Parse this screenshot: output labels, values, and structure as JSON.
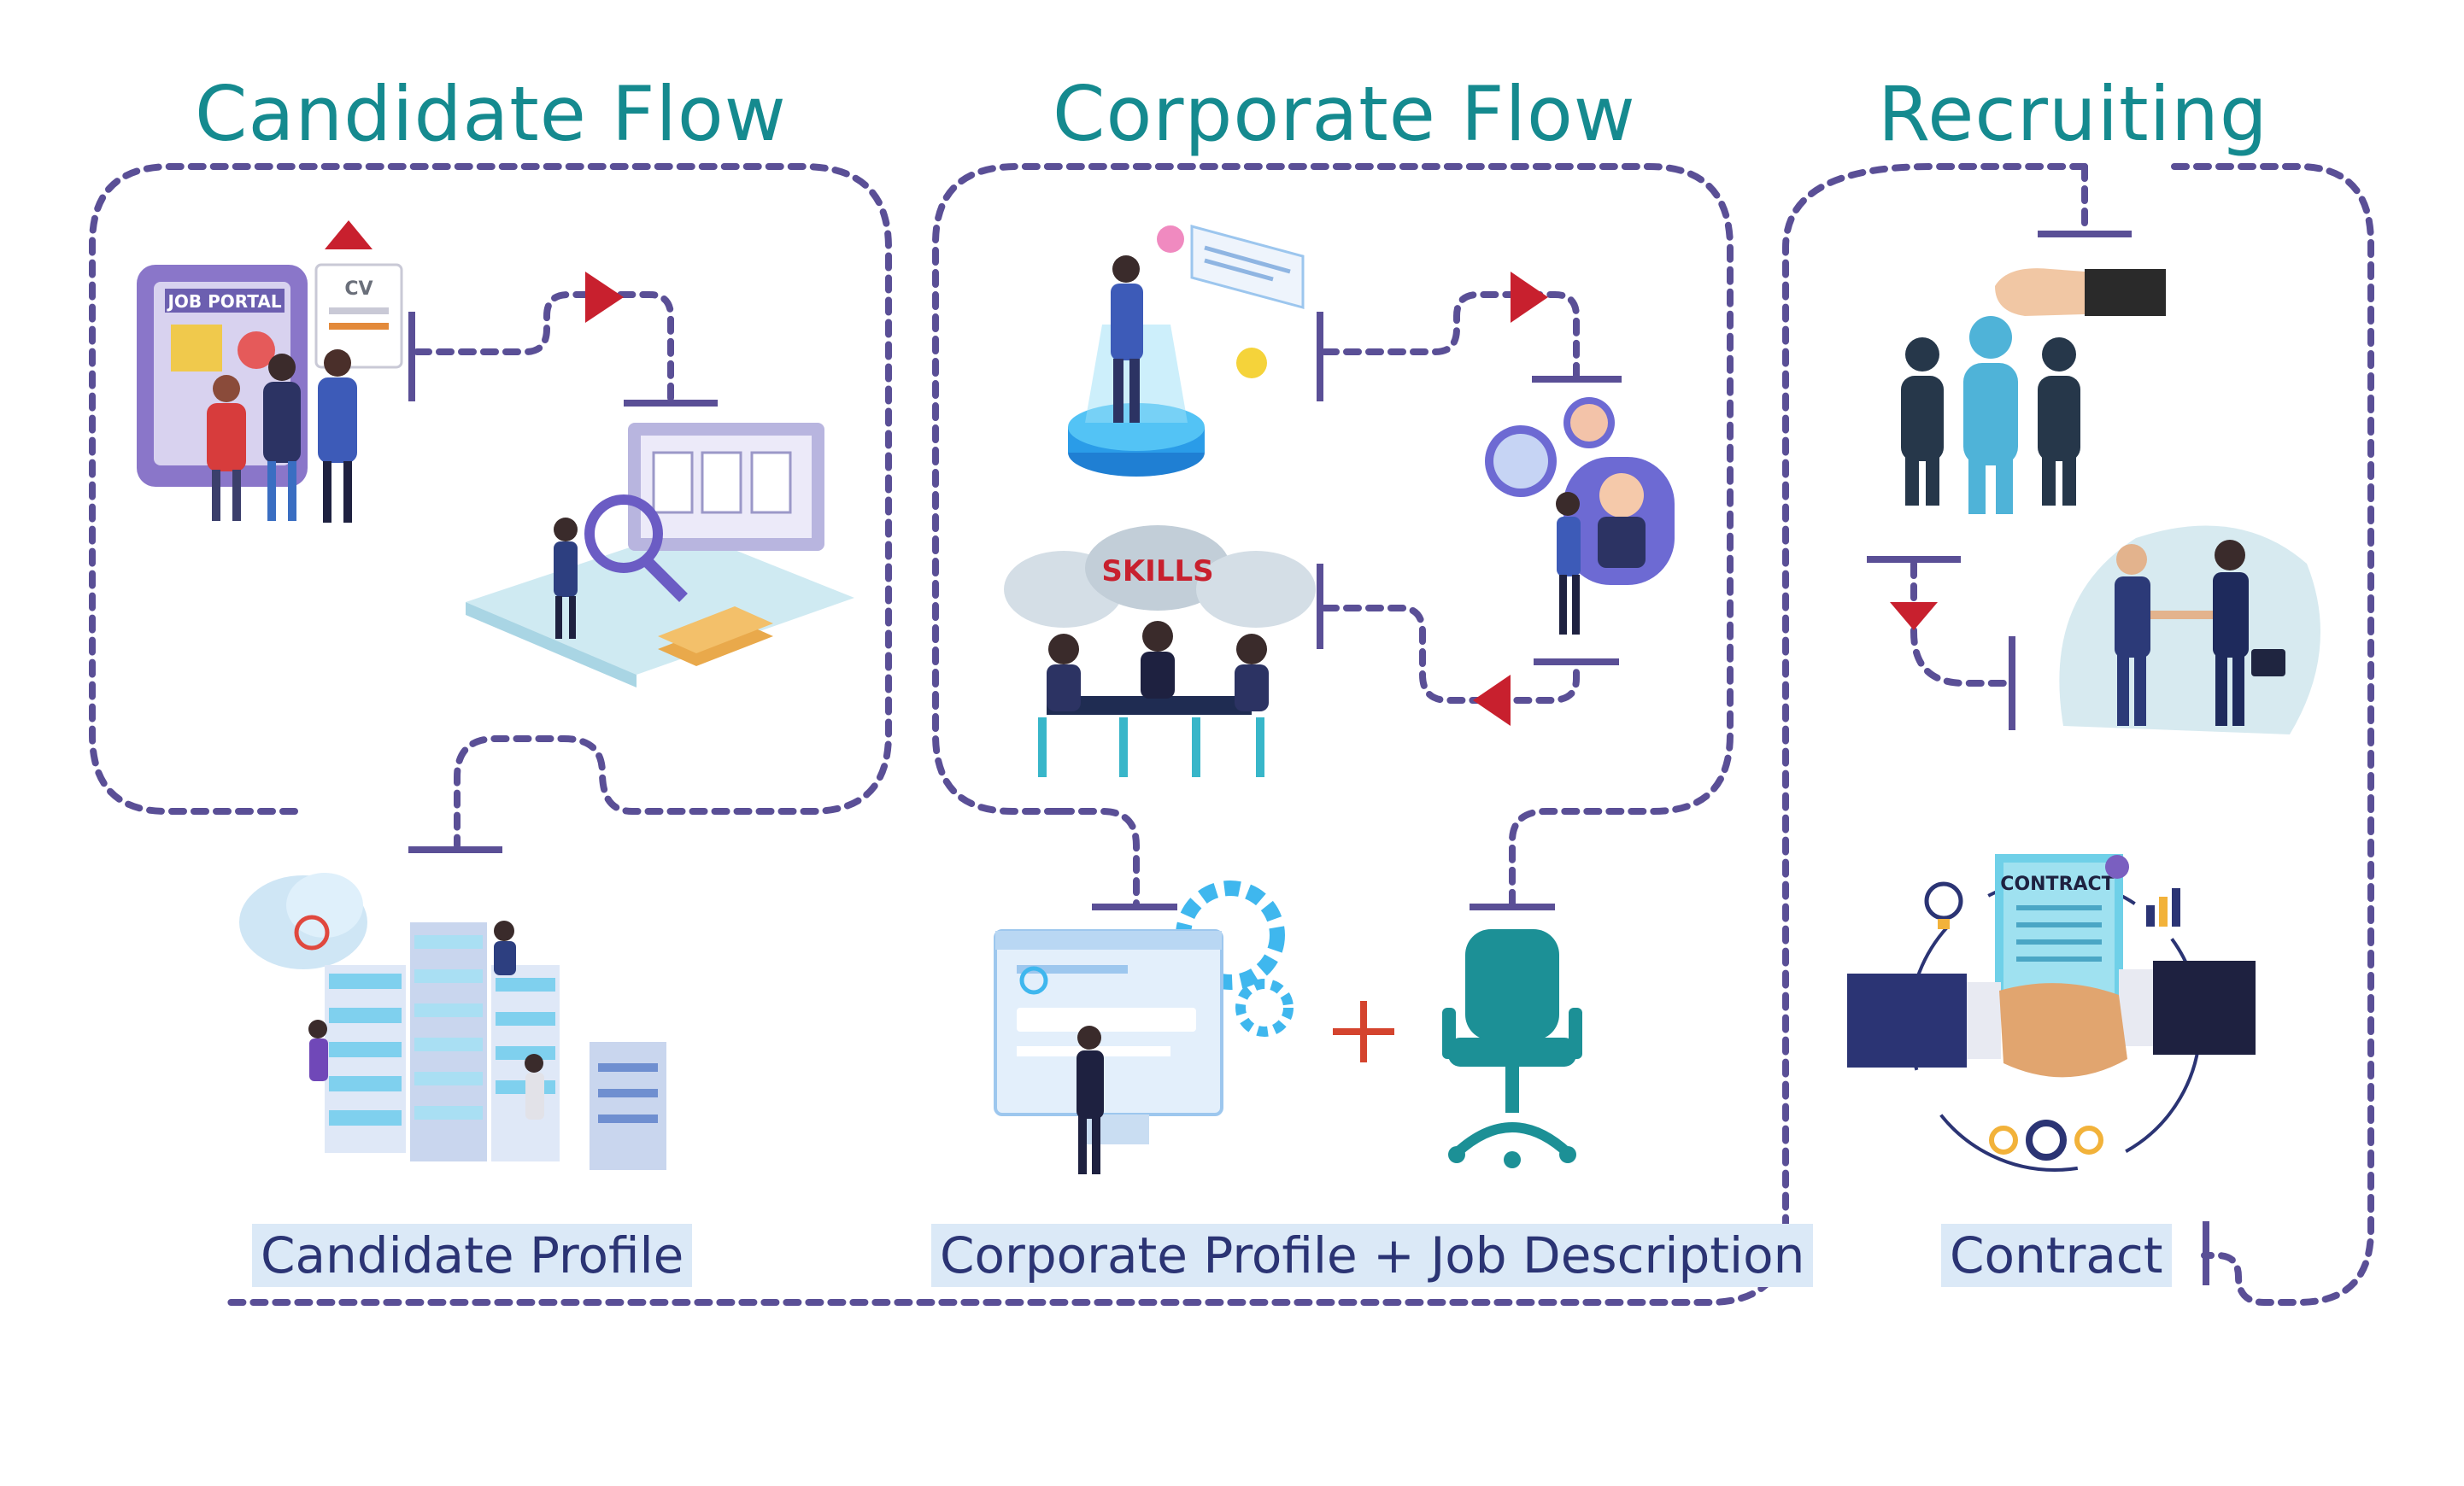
{
  "titles": {
    "candidate_flow": "Candidate Flow",
    "corporate_flow": "Corporate Flow",
    "recruiting": "Recruiting"
  },
  "labels": {
    "candidate_profile": "Candidate Profile",
    "corporate_profile_job": "Corporate Profile + Job Description",
    "contract": "Contract"
  },
  "illustration_text": {
    "job_portal": "JOB PORTAL",
    "cv": "CV",
    "skills": "SKILLS",
    "contract_doc": "CONTRACT"
  },
  "colors": {
    "title_teal": "#158a8f",
    "label_navy": "#2b3474",
    "label_bg": "#dbe9f7",
    "dotted_line": "#5a4f96",
    "arrow_red": "#c8202e"
  }
}
